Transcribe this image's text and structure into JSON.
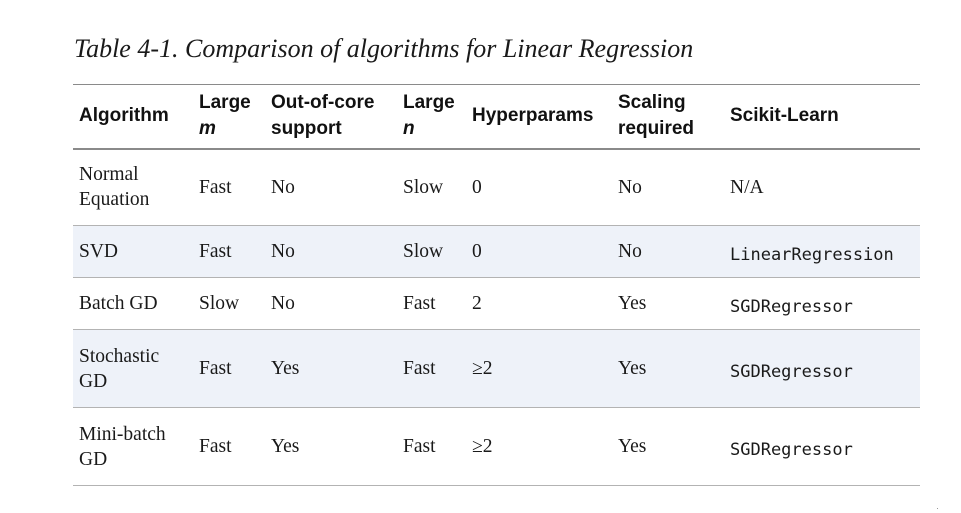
{
  "caption": "Table 4-1. Comparison of algorithms for Linear Regression",
  "headers": {
    "algorithm": "Algorithm",
    "large_m_line1": "Large",
    "large_m_line2": "m",
    "ooc_line1": "Out-of-core",
    "ooc_line2": "support",
    "large_n_line1": "Large",
    "large_n_line2": "n",
    "hyperparams": "Hyperparams",
    "scaling_line1": "Scaling",
    "scaling_line2": "required",
    "sklearn": "Scikit-Learn"
  },
  "rows": [
    {
      "algorithm_line1": "Normal",
      "algorithm_line2": "Equation",
      "large_m": "Fast",
      "out_of_core": "No",
      "large_n": "Slow",
      "hyperparams": "0",
      "scaling": "No",
      "sklearn": "N/A"
    },
    {
      "algorithm_line1": "SVD",
      "algorithm_line2": "",
      "large_m": "Fast",
      "out_of_core": "No",
      "large_n": "Slow",
      "hyperparams": "0",
      "scaling": "No",
      "sklearn": "LinearRegression"
    },
    {
      "algorithm_line1": "Batch GD",
      "algorithm_line2": "",
      "large_m": "Slow",
      "out_of_core": "No",
      "large_n": "Fast",
      "hyperparams": "2",
      "scaling": "Yes",
      "sklearn": "SGDRegressor"
    },
    {
      "algorithm_line1": "Stochastic",
      "algorithm_line2": "GD",
      "large_m": "Fast",
      "out_of_core": "Yes",
      "large_n": "Fast",
      "hyperparams": "≥2",
      "scaling": "Yes",
      "sklearn": "SGDRegressor"
    },
    {
      "algorithm_line1": "Mini-batch",
      "algorithm_line2": "GD",
      "large_m": "Fast",
      "out_of_core": "Yes",
      "large_n": "Fast",
      "hyperparams": "≥2",
      "scaling": "Yes",
      "sklearn": "SGDRegressor"
    }
  ]
}
